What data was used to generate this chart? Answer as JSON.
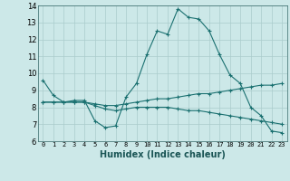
{
  "xlabel": "Humidex (Indice chaleur)",
  "xlim": [
    -0.5,
    23.5
  ],
  "ylim": [
    6,
    14
  ],
  "yticks": [
    6,
    7,
    8,
    9,
    10,
    11,
    12,
    13,
    14
  ],
  "xticks": [
    0,
    1,
    2,
    3,
    4,
    5,
    6,
    7,
    8,
    9,
    10,
    11,
    12,
    13,
    14,
    15,
    16,
    17,
    18,
    19,
    20,
    21,
    22,
    23
  ],
  "bg_color": "#cce8e8",
  "grid_color": "#aacccc",
  "line_color": "#1a7070",
  "lines": [
    {
      "x": [
        0,
        1,
        2,
        3,
        4,
        5,
        6,
        7,
        8,
        9,
        10,
        11,
        12,
        13,
        14,
        15,
        16,
        17,
        18,
        19,
        20,
        21,
        22,
        23
      ],
      "y": [
        9.6,
        8.7,
        8.3,
        8.4,
        8.4,
        7.2,
        6.8,
        6.9,
        8.6,
        9.4,
        11.1,
        12.5,
        12.3,
        13.8,
        13.3,
        13.2,
        12.5,
        11.1,
        9.9,
        9.4,
        8.0,
        7.5,
        6.6,
        6.5
      ]
    },
    {
      "x": [
        0,
        1,
        2,
        3,
        4,
        5,
        6,
        7,
        8,
        9,
        10,
        11,
        12,
        13,
        14,
        15,
        16,
        17,
        18,
        19,
        20,
        21,
        22,
        23
      ],
      "y": [
        8.3,
        8.3,
        8.3,
        8.3,
        8.3,
        8.2,
        8.1,
        8.1,
        8.2,
        8.3,
        8.4,
        8.5,
        8.5,
        8.6,
        8.7,
        8.8,
        8.8,
        8.9,
        9.0,
        9.1,
        9.2,
        9.3,
        9.3,
        9.4
      ]
    },
    {
      "x": [
        0,
        1,
        2,
        3,
        4,
        5,
        6,
        7,
        8,
        9,
        10,
        11,
        12,
        13,
        14,
        15,
        16,
        17,
        18,
        19,
        20,
        21,
        22,
        23
      ],
      "y": [
        8.3,
        8.3,
        8.3,
        8.3,
        8.3,
        8.1,
        7.9,
        7.8,
        7.9,
        8.0,
        8.0,
        8.0,
        8.0,
        7.9,
        7.8,
        7.8,
        7.7,
        7.6,
        7.5,
        7.4,
        7.3,
        7.2,
        7.1,
        7.0
      ]
    }
  ]
}
